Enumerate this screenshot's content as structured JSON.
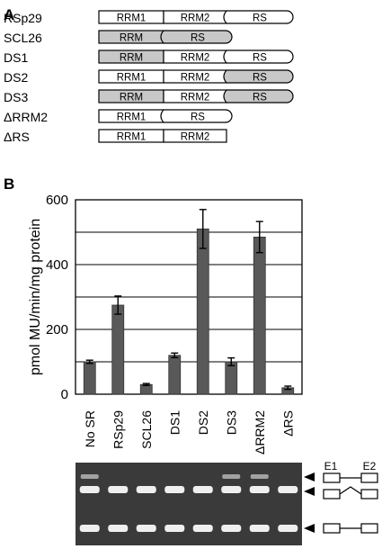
{
  "panel_a": {
    "letter": "A",
    "constructs": [
      {
        "name": "RSp29",
        "domains": [
          {
            "label": "RRM1",
            "shaded": false,
            "kind": "rrm1"
          },
          {
            "label": "RRM2",
            "shaded": false,
            "kind": "rrm2"
          },
          {
            "label": "RS",
            "shaded": false,
            "kind": "rs"
          }
        ]
      },
      {
        "name": "SCL26",
        "domains": [
          {
            "label": "RRM",
            "shaded": true,
            "kind": "rrm1"
          },
          {
            "label": "RS",
            "shaded": true,
            "kind": "rs_short"
          }
        ]
      },
      {
        "name": "DS1",
        "domains": [
          {
            "label": "RRM",
            "shaded": true,
            "kind": "rrm1"
          },
          {
            "label": "RRM2",
            "shaded": false,
            "kind": "rrm2"
          },
          {
            "label": "RS",
            "shaded": false,
            "kind": "rs"
          }
        ]
      },
      {
        "name": "DS2",
        "domains": [
          {
            "label": "RRM1",
            "shaded": false,
            "kind": "rrm1"
          },
          {
            "label": "RRM2",
            "shaded": false,
            "kind": "rrm2"
          },
          {
            "label": "RS",
            "shaded": true,
            "kind": "rs"
          }
        ]
      },
      {
        "name": "DS3",
        "domains": [
          {
            "label": "RRM",
            "shaded": true,
            "kind": "rrm1"
          },
          {
            "label": "RRM2",
            "shaded": false,
            "kind": "rrm2"
          },
          {
            "label": "RS",
            "shaded": true,
            "kind": "rs"
          }
        ]
      },
      {
        "name": "ΔRRM2",
        "domains": [
          {
            "label": "RRM1",
            "shaded": false,
            "kind": "rrm1"
          },
          {
            "label": "RS",
            "shaded": false,
            "kind": "rs_short"
          }
        ]
      },
      {
        "name": "ΔRS",
        "domains": [
          {
            "label": "RRM1",
            "shaded": false,
            "kind": "rrm1"
          },
          {
            "label": "RRM2",
            "shaded": false,
            "kind": "rrm2_end"
          }
        ]
      }
    ]
  },
  "panel_b": {
    "letter": "B",
    "gel_labels": {
      "exon1": "E1",
      "exon2": "E2"
    }
  },
  "colors": {
    "bar": "#595959",
    "shaded_domain": "#c8c8c8",
    "gel_bg": "#3a3a3a",
    "band": "#ffffff"
  },
  "chart_data": {
    "type": "bar",
    "categories": [
      "No SR",
      "RSp29",
      "SCL26",
      "DS1",
      "DS2",
      "DS3",
      "ΔRRM2",
      "ΔRS"
    ],
    "values": [
      100,
      275,
      30,
      120,
      510,
      100,
      485,
      20
    ],
    "errors": [
      5,
      28,
      3,
      7,
      60,
      12,
      48,
      5
    ],
    "xlabel": "",
    "ylabel": "pmol MU/min/mg protein",
    "ylim": [
      0,
      600
    ],
    "yticks": [
      0,
      200,
      400,
      600
    ],
    "grid": true
  }
}
